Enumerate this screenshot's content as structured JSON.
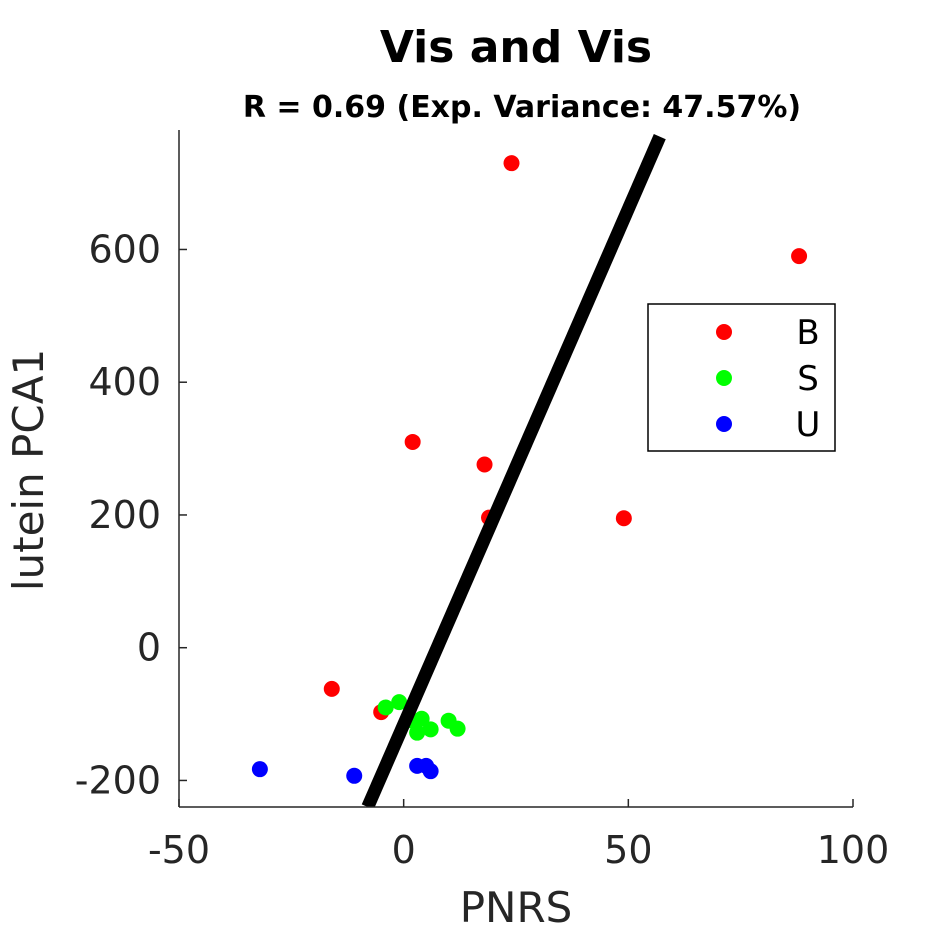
{
  "chart_data": {
    "type": "scatter",
    "title": "Vis and Vis",
    "subtitle": "R = 0.69 (Exp. Variance: 47.57%)",
    "xlabel": "PNRS",
    "ylabel": "lutein PCA1",
    "xlim": [
      -50,
      100
    ],
    "ylim": [
      -240,
      780
    ],
    "xticks": [
      -50,
      0,
      50,
      100
    ],
    "xtick_labels": [
      "-50",
      "0",
      "50",
      "100"
    ],
    "yticks": [
      -200,
      0,
      200,
      400,
      600
    ],
    "ytick_labels": [
      "-200",
      "0",
      "200",
      "400",
      "600"
    ],
    "grid": false,
    "legend_position": "right",
    "series": [
      {
        "name": "B",
        "color": "#ff0000",
        "points": [
          {
            "x": 24,
            "y": 730
          },
          {
            "x": 88,
            "y": 590
          },
          {
            "x": 2,
            "y": 310
          },
          {
            "x": 18,
            "y": 276
          },
          {
            "x": 19,
            "y": 196
          },
          {
            "x": 49,
            "y": 195
          },
          {
            "x": -16,
            "y": -62
          },
          {
            "x": -5,
            "y": -97
          }
        ]
      },
      {
        "name": "S",
        "color": "#00ff00",
        "points": [
          {
            "x": -4,
            "y": -90
          },
          {
            "x": -1,
            "y": -82
          },
          {
            "x": 2,
            "y": -110
          },
          {
            "x": 4,
            "y": -107
          },
          {
            "x": 3,
            "y": -128
          },
          {
            "x": 6,
            "y": -123
          },
          {
            "x": 10,
            "y": -110
          },
          {
            "x": 12,
            "y": -122
          }
        ]
      },
      {
        "name": "U",
        "color": "#0000ff",
        "points": [
          {
            "x": -32,
            "y": -183
          },
          {
            "x": -11,
            "y": -193
          },
          {
            "x": 3,
            "y": -178
          },
          {
            "x": 5,
            "y": -178
          },
          {
            "x": 6,
            "y": -186
          }
        ]
      }
    ],
    "fit_line": {
      "color": "#000000",
      "points": [
        {
          "x": -8,
          "y": -240
        },
        {
          "x": 57,
          "y": 770
        }
      ]
    }
  }
}
